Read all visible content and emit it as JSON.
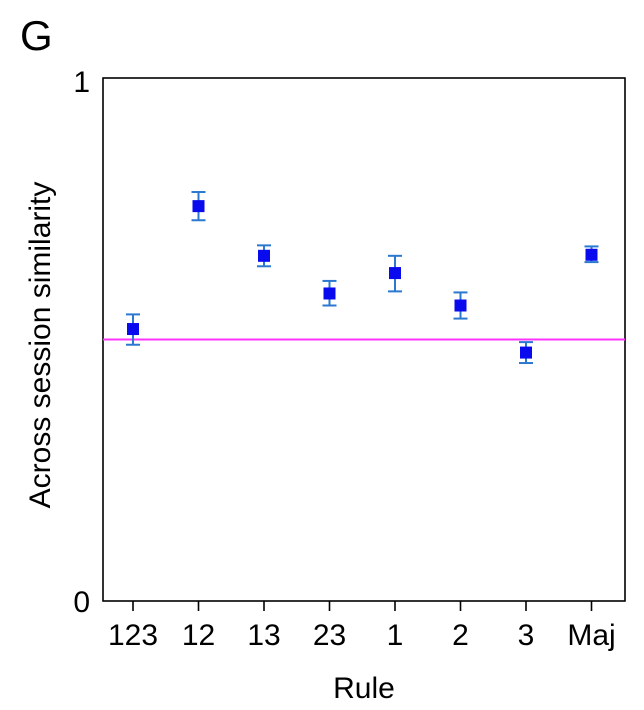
{
  "panel_label": "G",
  "chart_data": {
    "type": "scatter",
    "title": "",
    "xlabel": "Rule",
    "ylabel": "Across session similarity",
    "categories": [
      "123",
      "12",
      "13",
      "23",
      "1",
      "2",
      "3",
      "Maj"
    ],
    "values": [
      0.52,
      0.755,
      0.66,
      0.588,
      0.627,
      0.565,
      0.475,
      0.662
    ],
    "error_low": [
      0.49,
      0.728,
      0.64,
      0.565,
      0.592,
      0.54,
      0.455,
      0.648
    ],
    "error_high": [
      0.548,
      0.782,
      0.68,
      0.612,
      0.66,
      0.59,
      0.495,
      0.678
    ],
    "ylim": [
      0,
      1
    ],
    "yticks": [
      "0",
      "1"
    ],
    "reference_line": 0.5,
    "grid": false,
    "colors": {
      "marker": "#0a0aef",
      "errorbar": "#2b78d0",
      "reference": "#ff33ff",
      "axis": "#000000"
    }
  }
}
